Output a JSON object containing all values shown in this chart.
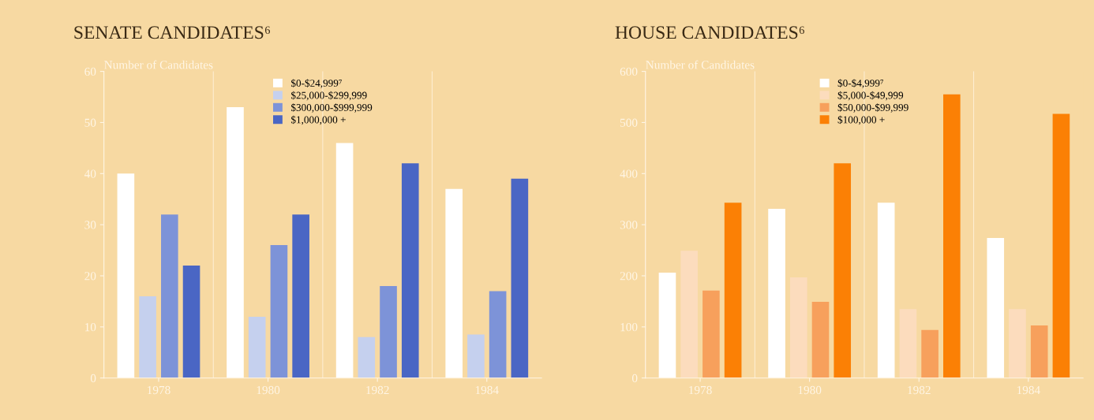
{
  "chart_data": [
    {
      "type": "bar",
      "title": "SENATE CANDIDATES⁶",
      "ylabel": "Number of Candidates",
      "categories": [
        "1978",
        "1980",
        "1982",
        "1984"
      ],
      "ylim": [
        0,
        60
      ],
      "yticks": [
        0,
        10,
        20,
        30,
        40,
        50,
        60
      ],
      "legend": "top",
      "series": [
        {
          "name": "$0-$24,999⁷",
          "color": "#ffffff",
          "values": [
            40,
            53,
            46,
            37
          ]
        },
        {
          "name": "$25,000-$299,999",
          "color": "#c5d0ee",
          "values": [
            16,
            12,
            8,
            8.5
          ]
        },
        {
          "name": "$300,000-$999,999",
          "color": "#7d93d8",
          "values": [
            32,
            26,
            18,
            17
          ]
        },
        {
          "name": "$1,000,000 +",
          "color": "#4a66c4",
          "values": [
            22,
            32,
            42,
            39
          ]
        }
      ]
    },
    {
      "type": "bar",
      "title": "HOUSE CANDIDATES⁶",
      "ylabel": "Number of Candidates",
      "categories": [
        "1978",
        "1980",
        "1982",
        "1984"
      ],
      "ylim": [
        0,
        600
      ],
      "yticks": [
        0,
        100,
        200,
        300,
        400,
        500,
        600
      ],
      "legend": "top",
      "series": [
        {
          "name": "$0-$4,999⁷",
          "color": "#ffffff",
          "values": [
            206,
            331,
            343,
            274
          ]
        },
        {
          "name": "$5,000-$49,999",
          "color": "#fcdcbd",
          "values": [
            249,
            197,
            135,
            135
          ]
        },
        {
          "name": "$50,000-$99,999",
          "color": "#f7a05c",
          "values": [
            171,
            149,
            94,
            103
          ]
        },
        {
          "name": "$100,000 +",
          "color": "#fb8005",
          "values": [
            343,
            420,
            555,
            517
          ]
        }
      ]
    }
  ]
}
